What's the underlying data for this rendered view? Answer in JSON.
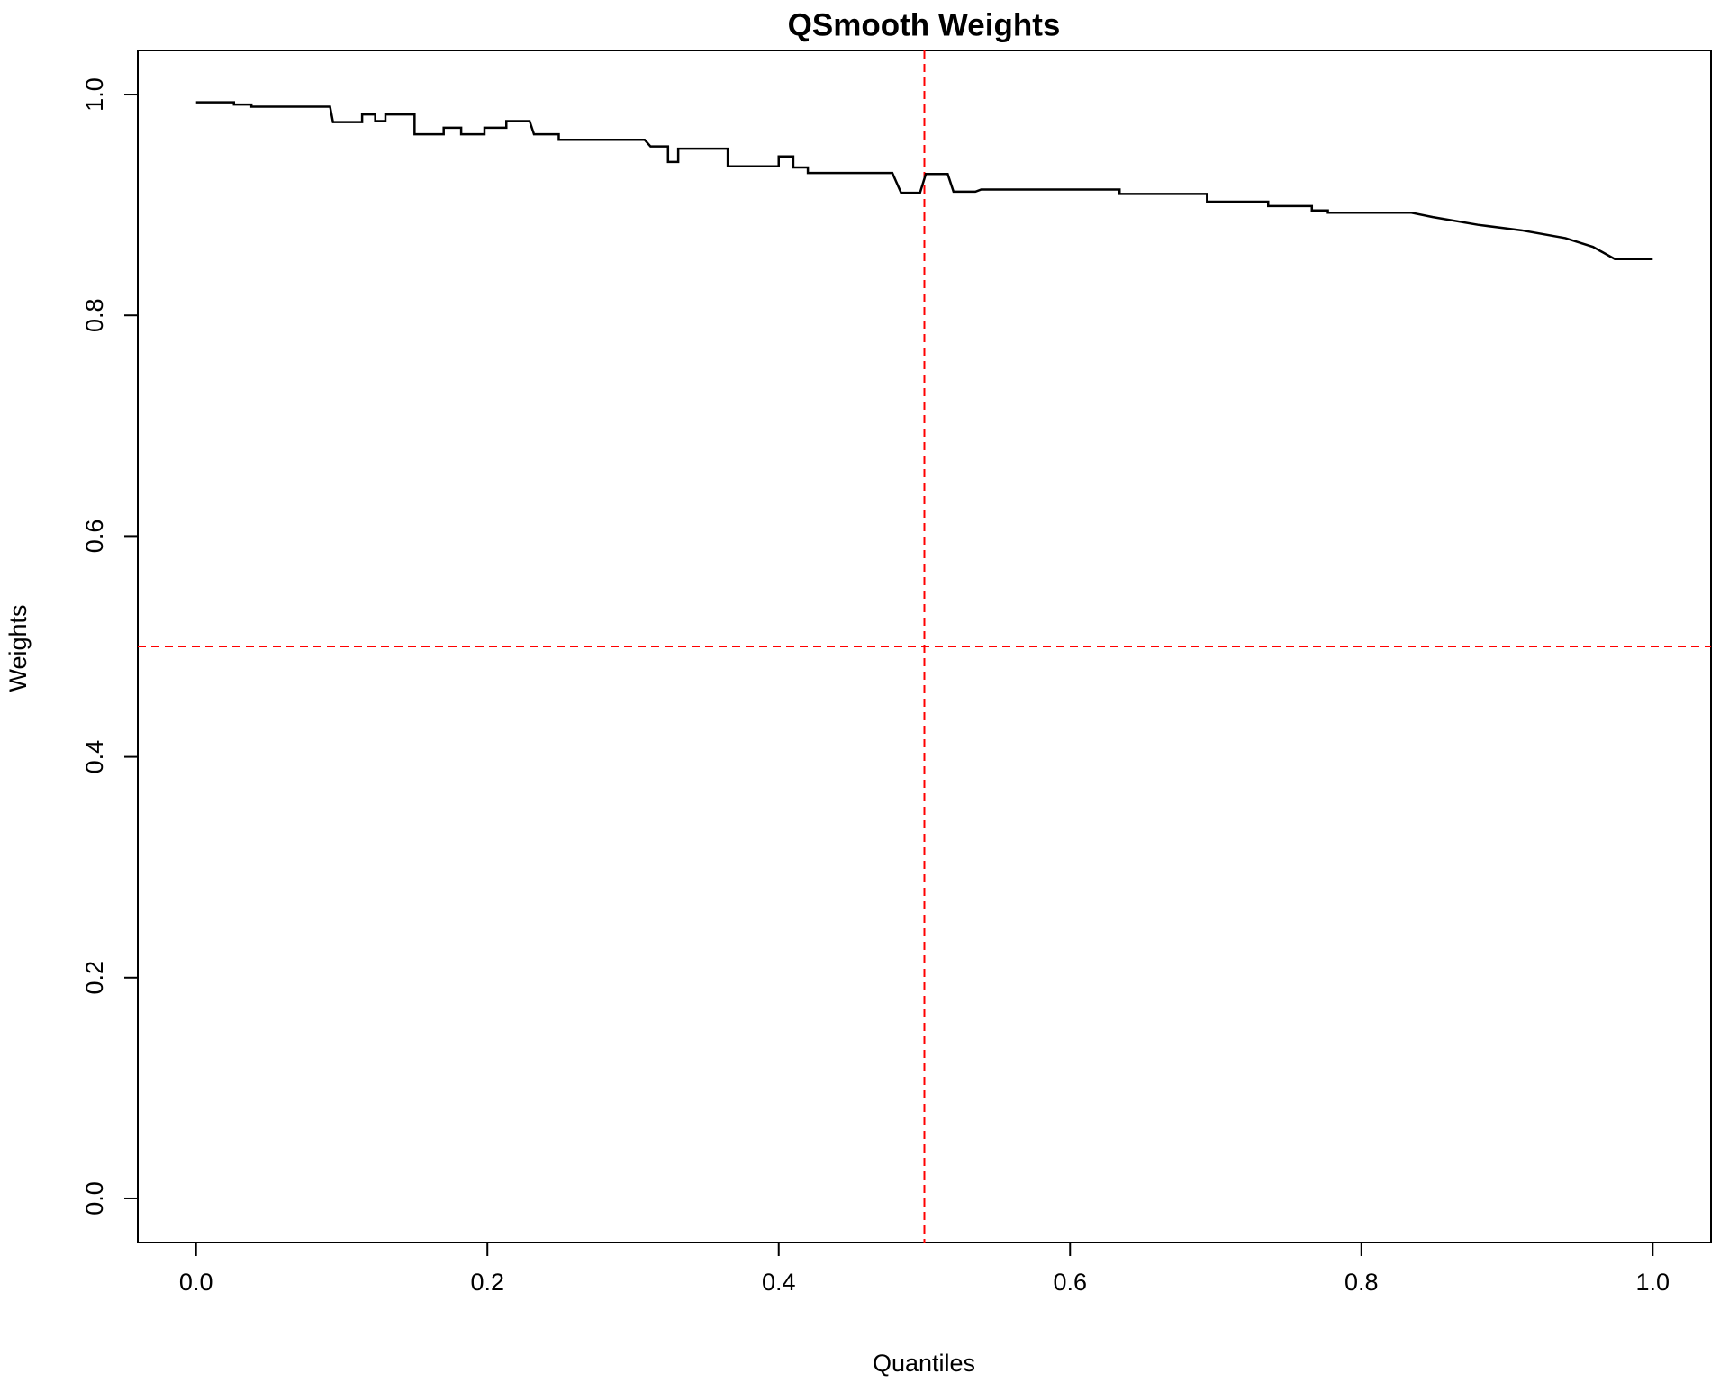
{
  "chart_data": {
    "type": "line",
    "title": "QSmooth Weights",
    "x_label": "Quantiles",
    "y_label": "Weights",
    "series": [
      {
        "name": "weights",
        "color": "#000000",
        "x": [
          0,
          0.026,
          0.026,
          0.038,
          0.038,
          0.092,
          0.094,
          0.114,
          0.114,
          0.123,
          0.123,
          0.13,
          0.13,
          0.15,
          0.15,
          0.17,
          0.17,
          0.182,
          0.182,
          0.198,
          0.198,
          0.213,
          0.213,
          0.229,
          0.232,
          0.249,
          0.249,
          0.308,
          0.312,
          0.324,
          0.324,
          0.331,
          0.331,
          0.365,
          0.365,
          0.4,
          0.4,
          0.41,
          0.41,
          0.42,
          0.42,
          0.478,
          0.484,
          0.497,
          0.501,
          0.516,
          0.52,
          0.535,
          0.539,
          0.634,
          0.634,
          0.694,
          0.694,
          0.736,
          0.736,
          0.766,
          0.766,
          0.777,
          0.777,
          0.834,
          0.849,
          0.88,
          0.91,
          0.94,
          0.959,
          0.974,
          1.0
        ],
        "values": [
          0.993,
          0.993,
          0.991,
          0.991,
          0.989,
          0.989,
          0.975,
          0.975,
          0.982,
          0.982,
          0.976,
          0.976,
          0.982,
          0.982,
          0.964,
          0.964,
          0.97,
          0.97,
          0.964,
          0.964,
          0.97,
          0.97,
          0.976,
          0.976,
          0.964,
          0.964,
          0.959,
          0.959,
          0.953,
          0.953,
          0.939,
          0.939,
          0.951,
          0.951,
          0.935,
          0.935,
          0.944,
          0.944,
          0.934,
          0.934,
          0.929,
          0.929,
          0.911,
          0.911,
          0.928,
          0.928,
          0.912,
          0.912,
          0.914,
          0.914,
          0.91,
          0.91,
          0.903,
          0.903,
          0.899,
          0.899,
          0.895,
          0.895,
          0.893,
          0.893,
          0.889,
          0.882,
          0.877,
          0.87,
          0.862,
          0.851,
          0.851
        ]
      }
    ],
    "vlines": [
      0.5
    ],
    "hlines": [
      0.5
    ],
    "ref_color": "#ff0000",
    "xlim": [
      -0.04,
      1.04
    ],
    "ylim": [
      -0.04,
      1.04
    ],
    "xticks": [
      {
        "value": 0,
        "label": "0.0"
      },
      0.2,
      0.4,
      0.6,
      0.8,
      {
        "value": 1,
        "label": "1.0"
      }
    ],
    "yticks": [
      {
        "value": 0,
        "label": "0.0"
      },
      0.2,
      0.4,
      0.6,
      0.8,
      {
        "value": 1,
        "label": "1.0"
      }
    ]
  }
}
